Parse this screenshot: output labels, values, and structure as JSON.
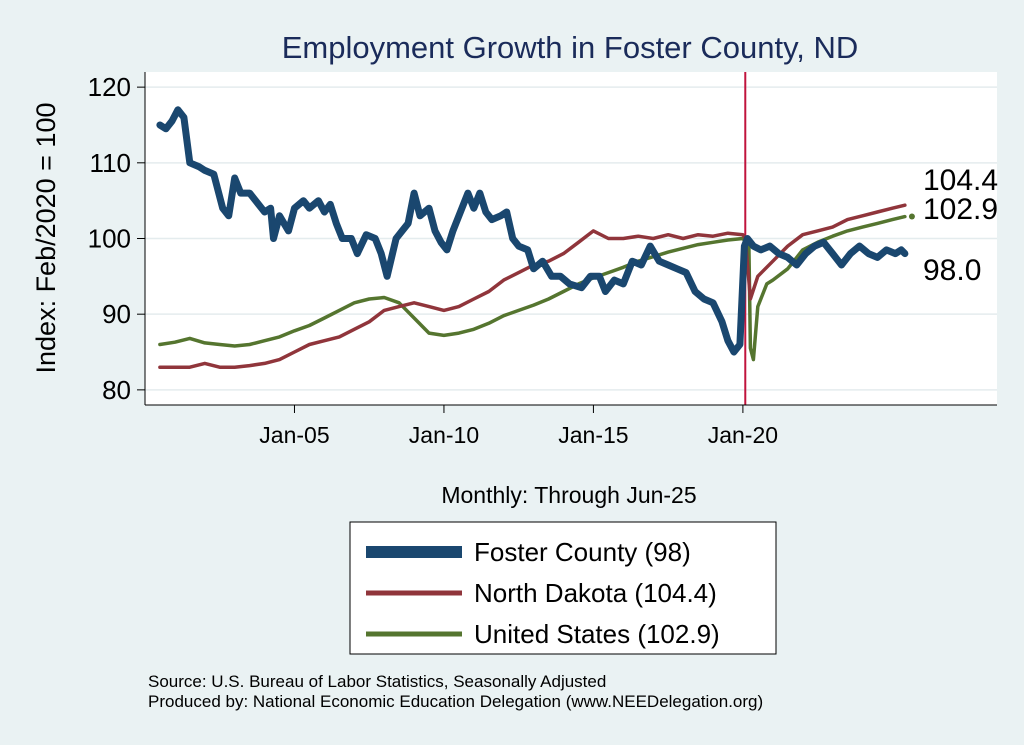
{
  "chart_data": {
    "type": "line",
    "title": "Employment Growth in Foster  County, ND",
    "ylabel": "Index: Feb/2020 = 100",
    "xlabel": "Monthly: Through Jun-25",
    "ylim": [
      78,
      122
    ],
    "xlim": [
      2000.0,
      2028.5
    ],
    "yticks": [
      80,
      90,
      100,
      110,
      120
    ],
    "xticks": [
      {
        "year": 2005.0,
        "label": "Jan-05"
      },
      {
        "year": 2010.0,
        "label": "Jan-10"
      },
      {
        "year": 2015.0,
        "label": "Jan-15"
      },
      {
        "year": 2020.0,
        "label": "Jan-20"
      }
    ],
    "reference_line": {
      "year": 2020.08,
      "color": "#c0143c"
    },
    "grid": true,
    "series": [
      {
        "name": "Foster  County (98)",
        "color": "#1a476f",
        "width": 7,
        "end_label": "98.0",
        "points": [
          [
            2000.5,
            115
          ],
          [
            2000.7,
            114.5
          ],
          [
            2000.9,
            115.5
          ],
          [
            2001.1,
            117
          ],
          [
            2001.3,
            116
          ],
          [
            2001.5,
            110
          ],
          [
            2001.8,
            109.5
          ],
          [
            2002.0,
            109
          ],
          [
            2002.3,
            108.5
          ],
          [
            2002.6,
            104
          ],
          [
            2002.8,
            103
          ],
          [
            2003.0,
            108
          ],
          [
            2003.2,
            106
          ],
          [
            2003.5,
            106
          ],
          [
            2003.8,
            104.5
          ],
          [
            2004.0,
            103.5
          ],
          [
            2004.2,
            104
          ],
          [
            2004.3,
            100
          ],
          [
            2004.5,
            103
          ],
          [
            2004.8,
            101
          ],
          [
            2005.0,
            104
          ],
          [
            2005.3,
            105
          ],
          [
            2005.5,
            104
          ],
          [
            2005.8,
            105
          ],
          [
            2006.0,
            103.5
          ],
          [
            2006.2,
            104.5
          ],
          [
            2006.4,
            102
          ],
          [
            2006.6,
            100
          ],
          [
            2006.9,
            100
          ],
          [
            2007.1,
            98
          ],
          [
            2007.4,
            100.5
          ],
          [
            2007.7,
            100
          ],
          [
            2007.9,
            98
          ],
          [
            2008.1,
            95
          ],
          [
            2008.4,
            100
          ],
          [
            2008.6,
            101
          ],
          [
            2008.8,
            102
          ],
          [
            2009.0,
            106
          ],
          [
            2009.2,
            103
          ],
          [
            2009.5,
            104
          ],
          [
            2009.7,
            101
          ],
          [
            2009.9,
            99.5
          ],
          [
            2010.1,
            98.5
          ],
          [
            2010.3,
            101
          ],
          [
            2010.5,
            103
          ],
          [
            2010.7,
            105
          ],
          [
            2010.8,
            106
          ],
          [
            2011.0,
            104
          ],
          [
            2011.2,
            106
          ],
          [
            2011.4,
            103.5
          ],
          [
            2011.6,
            102.5
          ],
          [
            2011.9,
            103
          ],
          [
            2012.1,
            103.5
          ],
          [
            2012.3,
            100
          ],
          [
            2012.5,
            99
          ],
          [
            2012.8,
            98.5
          ],
          [
            2013.0,
            96
          ],
          [
            2013.3,
            97
          ],
          [
            2013.6,
            95
          ],
          [
            2013.9,
            95
          ],
          [
            2014.2,
            94
          ],
          [
            2014.6,
            93.5
          ],
          [
            2014.9,
            95
          ],
          [
            2015.2,
            95
          ],
          [
            2015.4,
            93
          ],
          [
            2015.7,
            94.5
          ],
          [
            2016.0,
            94
          ],
          [
            2016.3,
            97
          ],
          [
            2016.6,
            96.5
          ],
          [
            2016.9,
            99
          ],
          [
            2017.2,
            97
          ],
          [
            2017.5,
            96.5
          ],
          [
            2017.8,
            96
          ],
          [
            2018.1,
            95.5
          ],
          [
            2018.4,
            93
          ],
          [
            2018.7,
            92
          ],
          [
            2019.0,
            91.5
          ],
          [
            2019.3,
            89
          ],
          [
            2019.5,
            86.5
          ],
          [
            2019.7,
            85
          ],
          [
            2019.9,
            86
          ],
          [
            2020.05,
            99
          ],
          [
            2020.15,
            100
          ],
          [
            2020.35,
            99
          ],
          [
            2020.6,
            98.5
          ],
          [
            2020.9,
            99
          ],
          [
            2021.2,
            98
          ],
          [
            2021.5,
            97.5
          ],
          [
            2021.8,
            96.5
          ],
          [
            2022.1,
            98
          ],
          [
            2022.4,
            99
          ],
          [
            2022.7,
            99.5
          ],
          [
            2023.0,
            98
          ],
          [
            2023.3,
            96.5
          ],
          [
            2023.6,
            98
          ],
          [
            2023.9,
            99
          ],
          [
            2024.2,
            98
          ],
          [
            2024.5,
            97.5
          ],
          [
            2024.8,
            98.5
          ],
          [
            2025.1,
            98
          ],
          [
            2025.3,
            98.5
          ],
          [
            2025.42,
            98
          ]
        ]
      },
      {
        "name": "North Dakota (104.4)",
        "color": "#90353b",
        "width": 3.5,
        "end_label": "104.4",
        "points": [
          [
            2000.5,
            83
          ],
          [
            2001.0,
            83
          ],
          [
            2001.5,
            83
          ],
          [
            2002.0,
            83.5
          ],
          [
            2002.5,
            83
          ],
          [
            2003.0,
            83
          ],
          [
            2003.5,
            83.2
          ],
          [
            2004.0,
            83.5
          ],
          [
            2004.5,
            84
          ],
          [
            2005.0,
            85
          ],
          [
            2005.5,
            86
          ],
          [
            2006.0,
            86.5
          ],
          [
            2006.5,
            87
          ],
          [
            2007.0,
            88
          ],
          [
            2007.5,
            89
          ],
          [
            2008.0,
            90.5
          ],
          [
            2008.5,
            91
          ],
          [
            2009.0,
            91.5
          ],
          [
            2009.5,
            91
          ],
          [
            2010.0,
            90.5
          ],
          [
            2010.5,
            91
          ],
          [
            2011.0,
            92
          ],
          [
            2011.5,
            93
          ],
          [
            2012.0,
            94.5
          ],
          [
            2012.5,
            95.5
          ],
          [
            2013.0,
            96.5
          ],
          [
            2013.5,
            97
          ],
          [
            2014.0,
            98
          ],
          [
            2014.5,
            99.5
          ],
          [
            2015.0,
            101
          ],
          [
            2015.5,
            100
          ],
          [
            2016.0,
            100
          ],
          [
            2016.5,
            100.3
          ],
          [
            2017.0,
            100
          ],
          [
            2017.5,
            100.5
          ],
          [
            2018.0,
            100
          ],
          [
            2018.5,
            100.5
          ],
          [
            2019.0,
            100.3
          ],
          [
            2019.5,
            100.7
          ],
          [
            2020.0,
            100.5
          ],
          [
            2020.08,
            100
          ],
          [
            2020.25,
            92
          ],
          [
            2020.5,
            95
          ],
          [
            2021.0,
            97
          ],
          [
            2021.5,
            99
          ],
          [
            2022.0,
            100.5
          ],
          [
            2022.5,
            101
          ],
          [
            2023.0,
            101.5
          ],
          [
            2023.5,
            102.5
          ],
          [
            2024.0,
            103
          ],
          [
            2024.5,
            103.5
          ],
          [
            2025.0,
            104
          ],
          [
            2025.42,
            104.4
          ]
        ]
      },
      {
        "name": "United States (102.9)",
        "color": "#55752f",
        "width": 3.5,
        "end_label": "102.9",
        "points": [
          [
            2000.5,
            86
          ],
          [
            2001.0,
            86.3
          ],
          [
            2001.5,
            86.8
          ],
          [
            2002.0,
            86.2
          ],
          [
            2002.5,
            86
          ],
          [
            2003.0,
            85.8
          ],
          [
            2003.5,
            86
          ],
          [
            2004.0,
            86.5
          ],
          [
            2004.5,
            87
          ],
          [
            2005.0,
            87.8
          ],
          [
            2005.5,
            88.5
          ],
          [
            2006.0,
            89.5
          ],
          [
            2006.5,
            90.5
          ],
          [
            2007.0,
            91.5
          ],
          [
            2007.5,
            92
          ],
          [
            2008.0,
            92.2
          ],
          [
            2008.5,
            91.5
          ],
          [
            2009.0,
            89.5
          ],
          [
            2009.5,
            87.5
          ],
          [
            2010.0,
            87.2
          ],
          [
            2010.5,
            87.5
          ],
          [
            2011.0,
            88
          ],
          [
            2011.5,
            88.8
          ],
          [
            2012.0,
            89.8
          ],
          [
            2012.5,
            90.5
          ],
          [
            2013.0,
            91.2
          ],
          [
            2013.5,
            92
          ],
          [
            2014.0,
            93
          ],
          [
            2014.5,
            94
          ],
          [
            2015.0,
            94.8
          ],
          [
            2015.5,
            95.5
          ],
          [
            2016.0,
            96.2
          ],
          [
            2016.5,
            97
          ],
          [
            2017.0,
            97.6
          ],
          [
            2017.5,
            98.2
          ],
          [
            2018.0,
            98.7
          ],
          [
            2018.5,
            99.2
          ],
          [
            2019.0,
            99.5
          ],
          [
            2019.5,
            99.8
          ],
          [
            2020.0,
            100
          ],
          [
            2020.2,
            99
          ],
          [
            2020.25,
            85.5
          ],
          [
            2020.35,
            84
          ],
          [
            2020.5,
            91
          ],
          [
            2020.8,
            94
          ],
          [
            2021.0,
            94.5
          ],
          [
            2021.5,
            96
          ],
          [
            2022.0,
            98.5
          ],
          [
            2022.5,
            99.5
          ],
          [
            2023.0,
            100.3
          ],
          [
            2023.5,
            101
          ],
          [
            2024.0,
            101.5
          ],
          [
            2024.5,
            102
          ],
          [
            2025.0,
            102.5
          ],
          [
            2025.42,
            102.9
          ]
        ]
      }
    ],
    "source_lines": [
      "Source: U.S. Bureau of Labor Statistics, Seasonally Adjusted",
      "Produced by: National Economic Education Delegation (www.NEEDelegation.org)"
    ]
  }
}
